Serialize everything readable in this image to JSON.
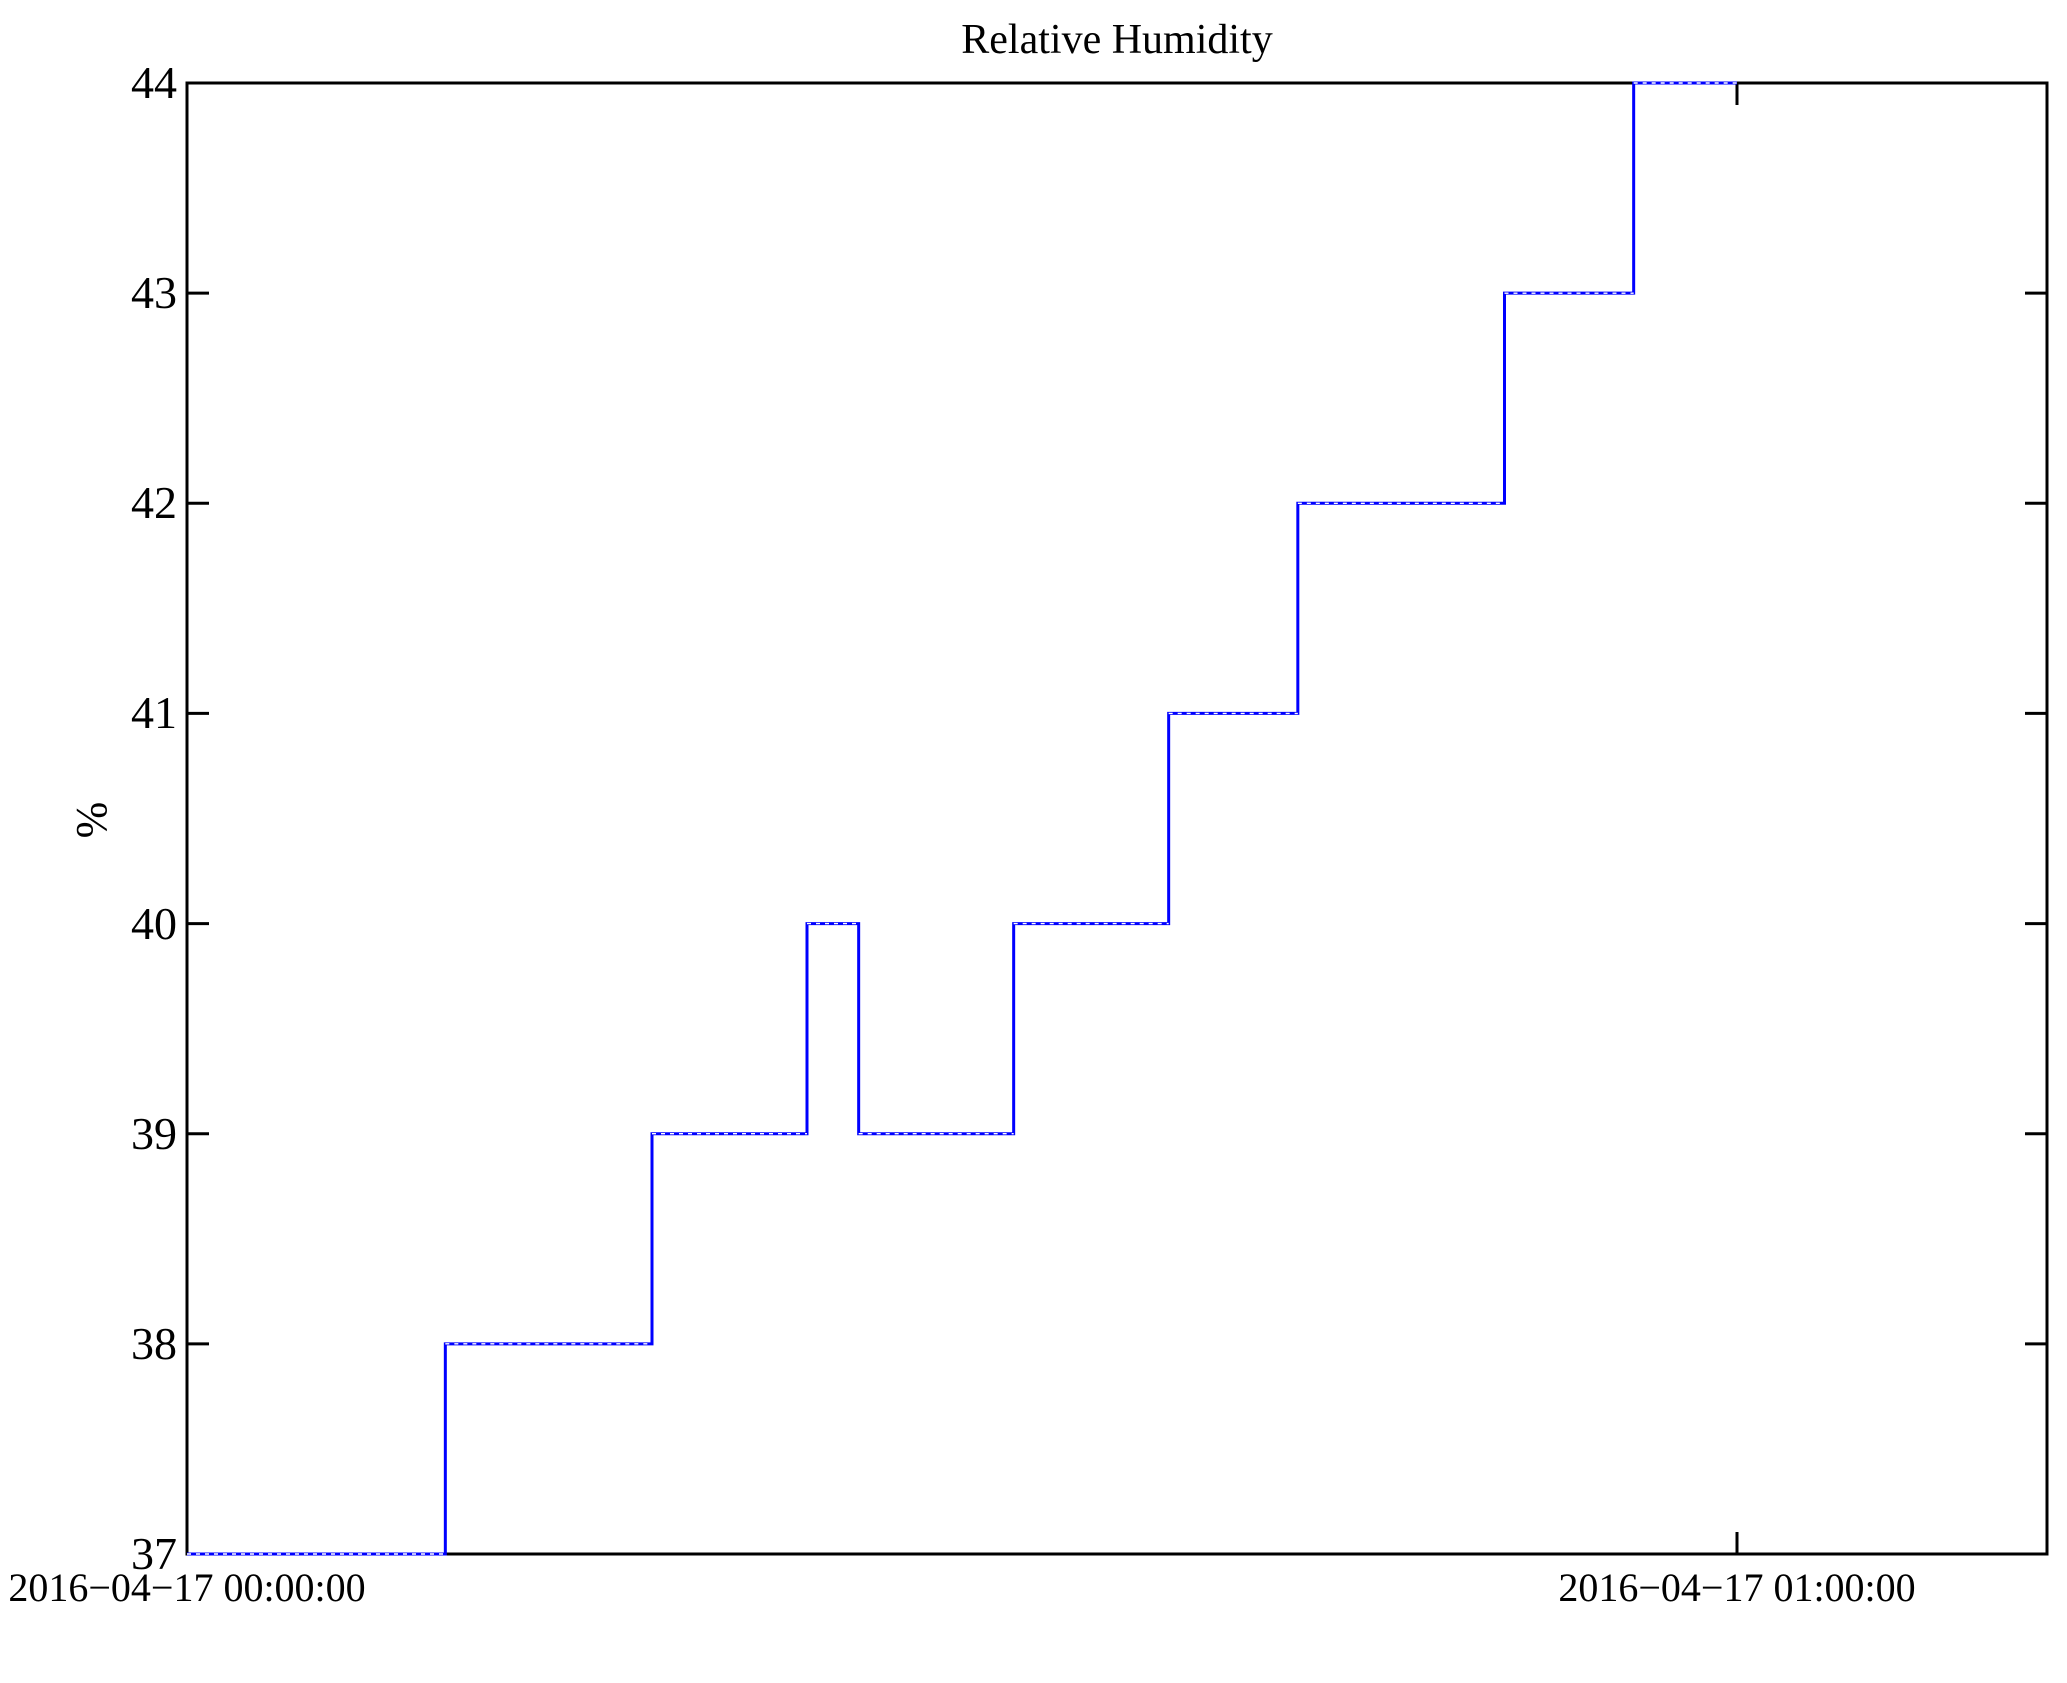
{
  "chart_data": {
    "type": "line",
    "step": "post",
    "title": "Relative Humidity",
    "xlabel": "",
    "ylabel": "%",
    "background_color": "#ffffff",
    "axis_color": "#000000",
    "line_color": "#0000ff",
    "grid": false,
    "legend": false,
    "ylim": [
      37,
      44
    ],
    "y_ticks": [
      37,
      38,
      39,
      40,
      41,
      42,
      43,
      44
    ],
    "xlim_minutes": [
      0,
      72
    ],
    "x_ticks": [
      {
        "t_minutes": 0,
        "label": "2016−04−17 00:00:00"
      },
      {
        "t_minutes": 60,
        "label": "2016−04−17 01:00:00"
      }
    ],
    "series": [
      {
        "name": "Relative Humidity",
        "color": "#0000ff",
        "points": [
          {
            "t_minutes": 0,
            "value": 37
          },
          {
            "t_minutes": 10,
            "value": 38
          },
          {
            "t_minutes": 18,
            "value": 39
          },
          {
            "t_minutes": 24,
            "value": 40
          },
          {
            "t_minutes": 26,
            "value": 39
          },
          {
            "t_minutes": 32,
            "value": 40
          },
          {
            "t_minutes": 38,
            "value": 41
          },
          {
            "t_minutes": 43,
            "value": 42
          },
          {
            "t_minutes": 51,
            "value": 43
          },
          {
            "t_minutes": 56,
            "value": 44
          },
          {
            "t_minutes": 60,
            "value": 44
          }
        ]
      }
    ]
  }
}
